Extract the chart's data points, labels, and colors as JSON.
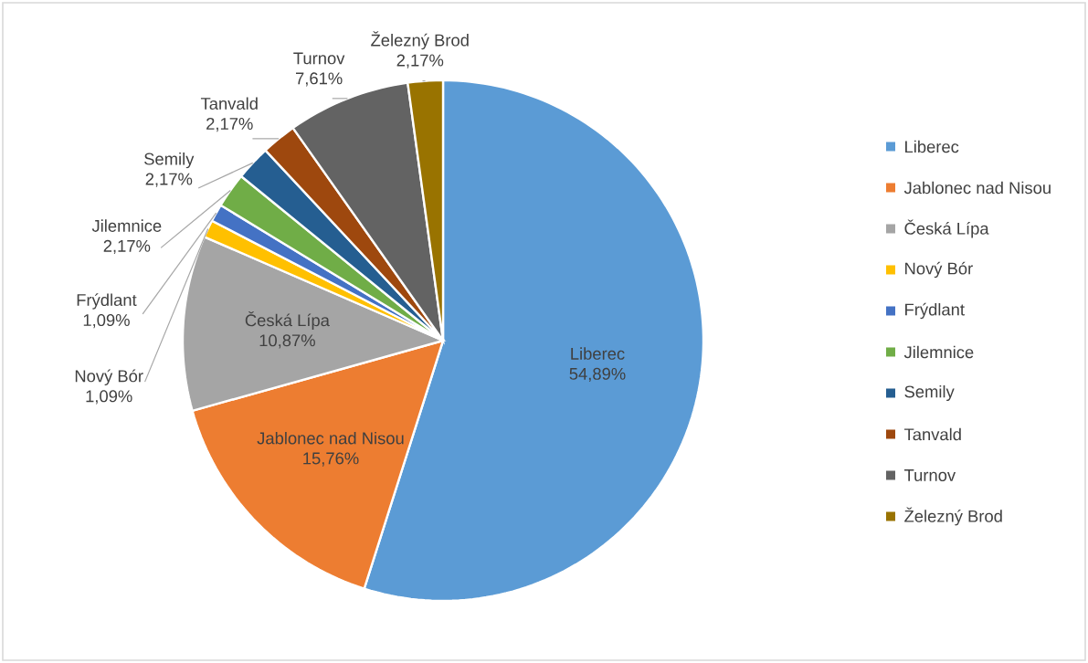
{
  "chart_data": {
    "type": "pie",
    "categories": [
      "Liberec",
      "Jablonec nad Nisou",
      "Česká Lípa",
      "Nový Bór",
      "Frýdlant",
      "Jilemnice",
      "Semily",
      "Tanvald",
      "Turnov",
      "Železný Brod"
    ],
    "values": [
      54.89,
      15.76,
      10.87,
      1.09,
      1.09,
      2.17,
      2.17,
      2.17,
      7.61,
      2.17
    ],
    "value_labels": [
      "54,89%",
      "15,76%",
      "10,87%",
      "1,09%",
      "1,09%",
      "2,17%",
      "2,17%",
      "2,17%",
      "7,61%",
      "2,17%"
    ],
    "colors": [
      "#5b9bd5",
      "#ed7d31",
      "#a5a5a5",
      "#ffc000",
      "#4472c4",
      "#70ad47",
      "#255e91",
      "#9e480e",
      "#636363",
      "#997300"
    ],
    "legend": "right"
  }
}
